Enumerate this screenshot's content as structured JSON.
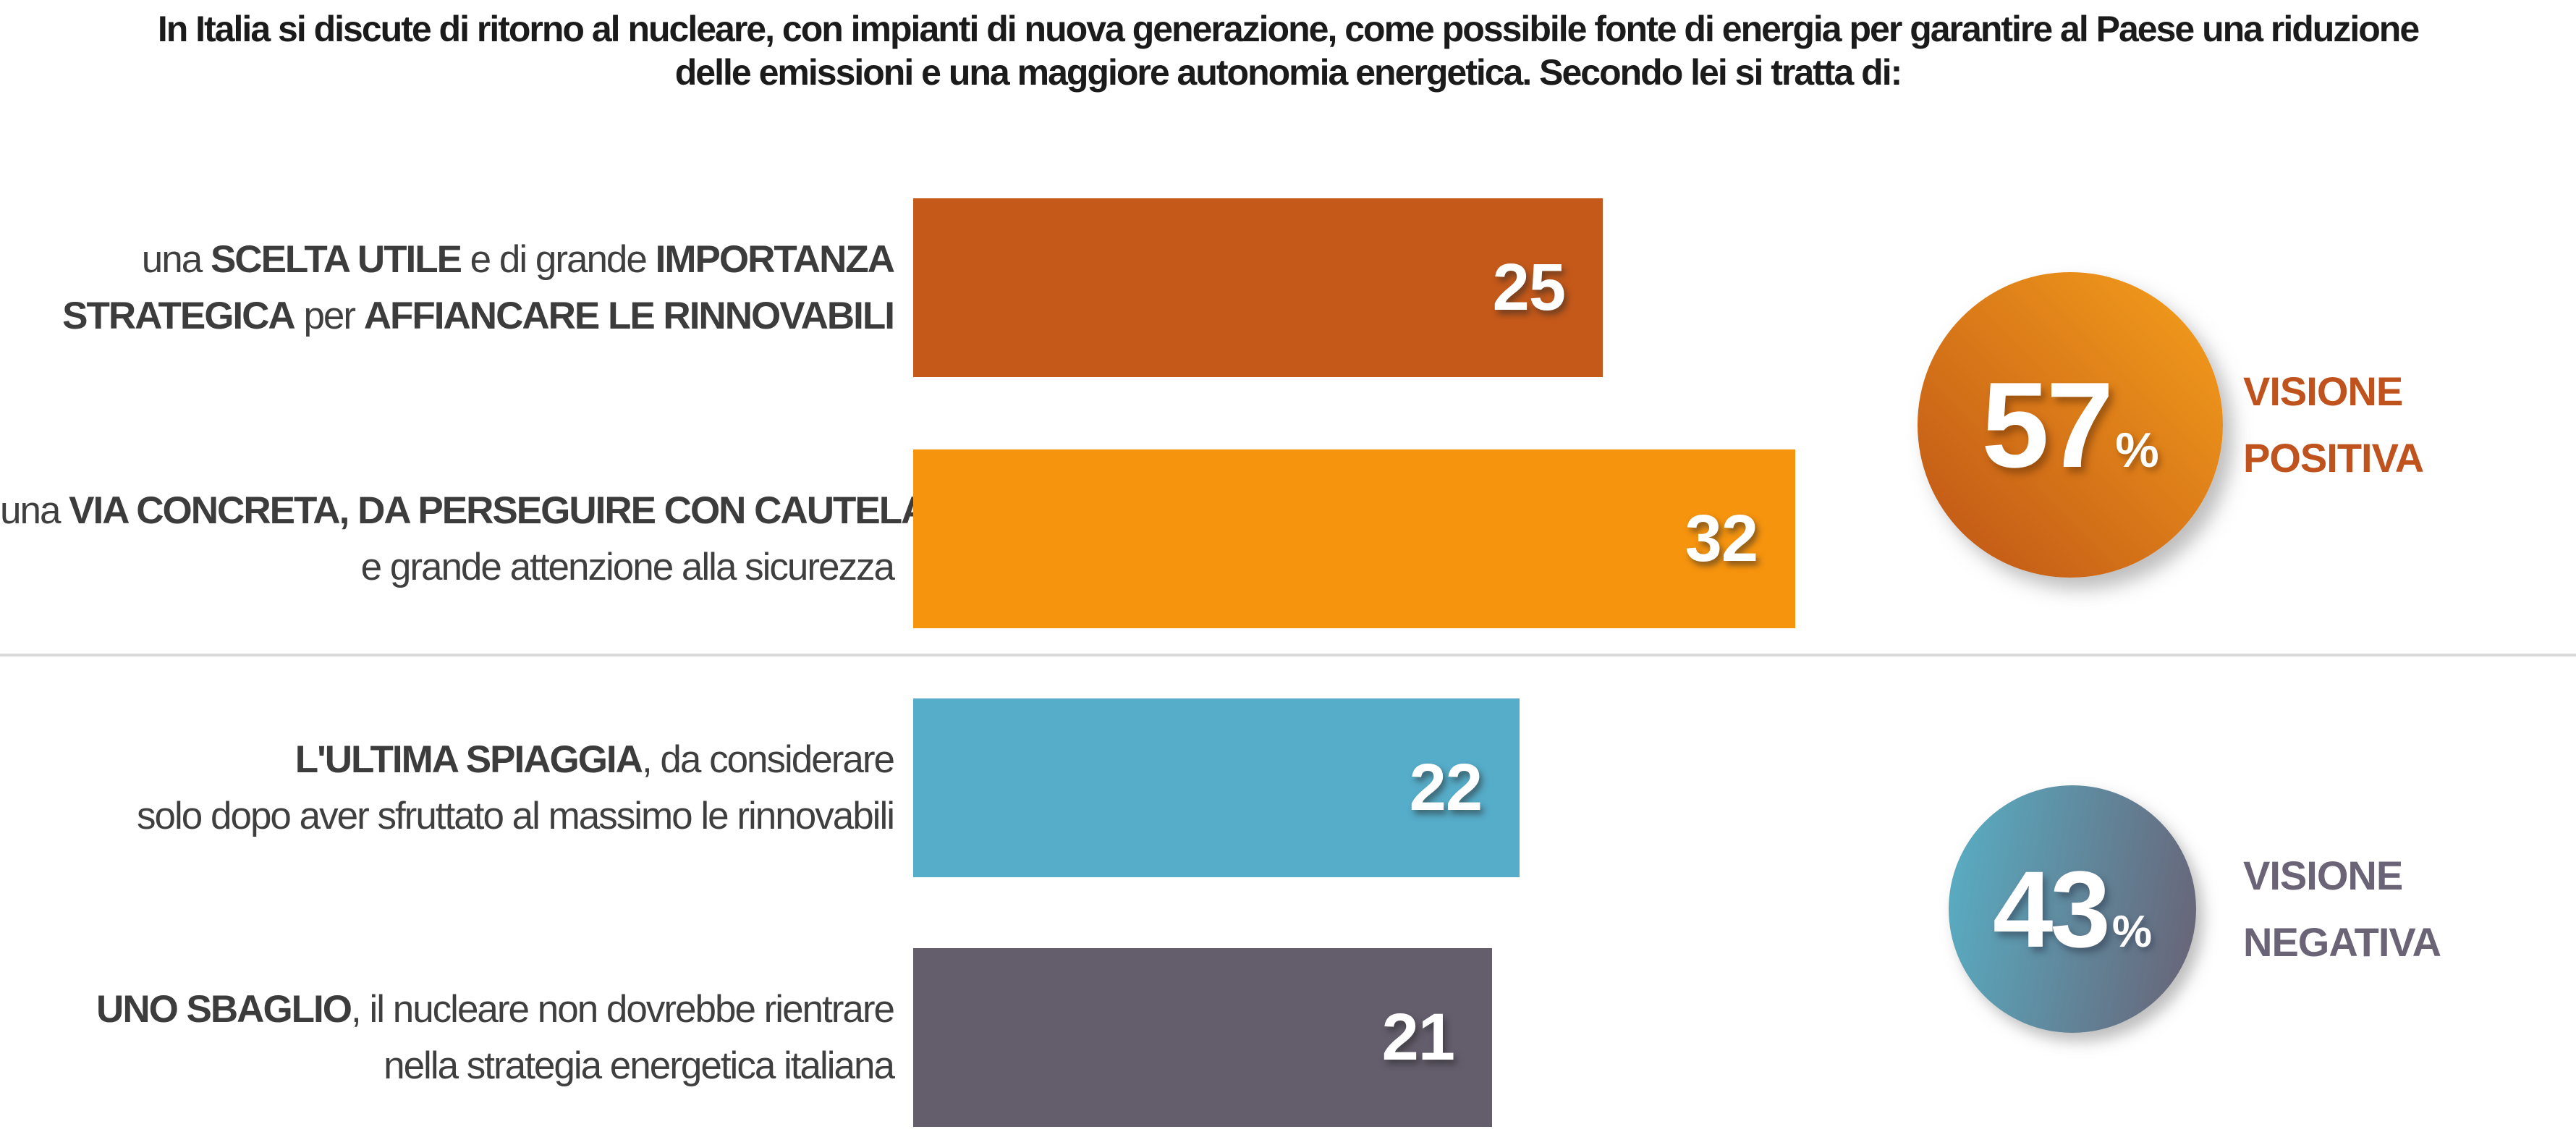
{
  "title": {
    "line1": "In Italia si discute di ritorno al nucleare, con impianti di nuova generazione, come possibile fonte di energia per garantire al Paese una riduzione",
    "line2": "delle emissioni e una maggiore autonomia energetica. Secondo lei si tratta di:"
  },
  "chart_data": {
    "type": "bar",
    "orientation": "horizontal",
    "value_axis_visible": false,
    "xlim": [
      0,
      35
    ],
    "categories": [
      "una SCELTA UTILE e di grande IMPORTANZA STRATEGICA per AFFIANCARE LE RINNOVABILI",
      "una VIA CONCRETA, DA PERSEGUIRE CON CAUTELA e grande attenzione alla sicurezza",
      "L'ULTIMA SPIAGGIA, da considerare solo dopo aver sfruttato al massimo le rinnovabili",
      "UNO SBAGLIO, il nucleare non dovrebbe rientrare nella strategia energetica italiana"
    ],
    "values": [
      25,
      32,
      22,
      21
    ],
    "bar_colors": [
      "#c5591a",
      "#f7940e",
      "#56adc9",
      "#645d6c"
    ],
    "bars": [
      {
        "value": 25,
        "color": "#c5591a",
        "label_lines": [
          [
            {
              "text": "una ",
              "bold": false
            },
            {
              "text": "SCELTA UTILE",
              "bold": true
            },
            {
              "text": " e di grande ",
              "bold": false
            },
            {
              "text": "IMPORTANZA",
              "bold": true
            }
          ],
          [
            {
              "text": "STRATEGICA",
              "bold": true
            },
            {
              "text": " per ",
              "bold": false
            },
            {
              "text": "AFFIANCARE LE RINNOVABILI",
              "bold": true
            }
          ]
        ]
      },
      {
        "value": 32,
        "color": "#f7940e",
        "label_lines": [
          [
            {
              "text": "una ",
              "bold": false
            },
            {
              "text": "VIA CONCRETA, DA PERSEGUIRE CON CAUTELA",
              "bold": true
            }
          ],
          [
            {
              "text": "e grande attenzione alla sicurezza",
              "bold": false
            }
          ]
        ]
      },
      {
        "value": 22,
        "color": "#56adc9",
        "label_lines": [
          [
            {
              "text": "L'ULTIMA SPIAGGIA",
              "bold": true
            },
            {
              "text": ", da considerare",
              "bold": false
            }
          ],
          [
            {
              "text": "solo dopo aver sfruttato al massimo le rinnovabili",
              "bold": false
            }
          ]
        ]
      },
      {
        "value": 21,
        "color": "#645d6c",
        "label_lines": [
          [
            {
              "text": "UNO SBAGLIO",
              "bold": true
            },
            {
              "text": ", il nucleare non dovrebbe rientrare",
              "bold": false
            }
          ],
          [
            {
              "text": "nella strategia energetica italiana",
              "bold": false
            }
          ]
        ]
      }
    ]
  },
  "summary": {
    "positive": {
      "value": "57",
      "unit": "%",
      "label_line1": "VISIONE",
      "label_line2": "POSITIVA",
      "gradient_start": "#bd5316",
      "gradient_end": "#f6a01c",
      "label_color": "#c0531d"
    },
    "negative": {
      "value": "43",
      "unit": "%",
      "label_line1": "VISIONE",
      "label_line2": "NEGATIVA",
      "gradient_start": "#58b0c6",
      "gradient_end": "#696174",
      "label_color": "#6b6376"
    }
  },
  "divider": {
    "color": "#d9d9d9"
  }
}
